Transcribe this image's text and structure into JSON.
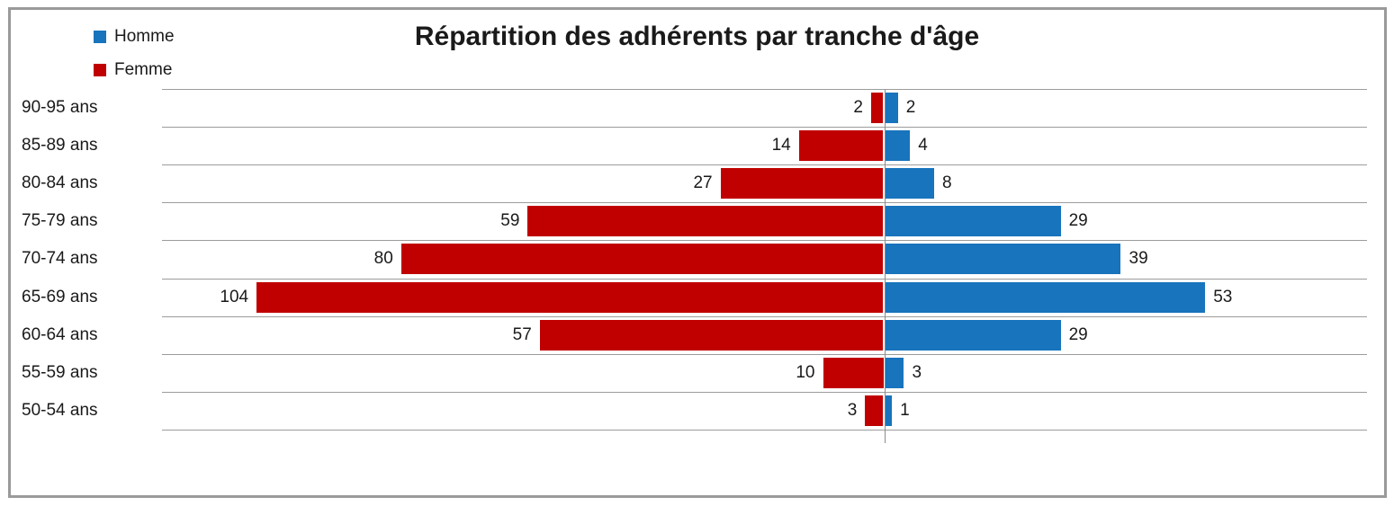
{
  "chart_data": {
    "type": "bar",
    "subtype": "population-pyramid",
    "orientation": "horizontal",
    "title": "Répartition des adhérents par tranche d'âge",
    "categories": [
      "90-95 ans",
      "85-89 ans",
      "80-84 ans",
      "75-79 ans",
      "70-74 ans",
      "65-69 ans",
      "60-64 ans",
      "55-59 ans",
      "50-54 ans"
    ],
    "categories_order": "top-to-bottom",
    "series": [
      {
        "name": "Homme",
        "color": "#1874BC",
        "side": "right",
        "values": [
          2,
          4,
          8,
          29,
          39,
          53,
          29,
          3,
          1
        ]
      },
      {
        "name": "Femme",
        "color": "#C00000",
        "side": "left",
        "values": [
          2,
          14,
          27,
          59,
          80,
          104,
          57,
          10,
          3
        ]
      }
    ],
    "xlim": [
      -120,
      80
    ],
    "x_axis_visible": false,
    "data_labels": "outside-end",
    "legend_position": "top-left",
    "grid": "horizontal-category-separators"
  },
  "colors": {
    "border": "#9A9A9A",
    "gridline": "#9C9C9C",
    "axis": "#8C8C8C",
    "background": "#FFFFFF",
    "text": "#1A1A1A"
  }
}
